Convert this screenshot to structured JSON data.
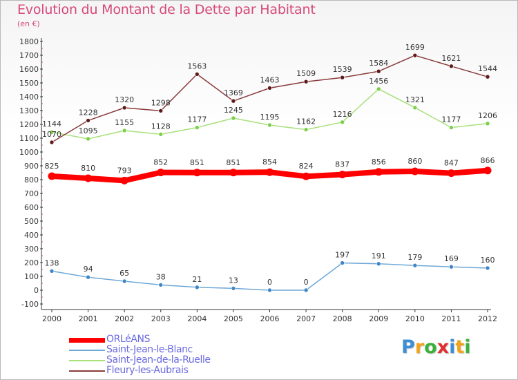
{
  "title": "Evolution du Montant de la Dette par Habitant",
  "subtitle": "(en €)",
  "logo": {
    "letters": [
      "P",
      "r",
      "o",
      "x",
      "i",
      "t",
      "i"
    ],
    "colors": [
      "#3d8ed6",
      "#f2a21b",
      "#3bb13b",
      "#e03030",
      "#3d8ed6",
      "#f2a21b",
      "#3bb13b"
    ]
  },
  "chart_data": {
    "type": "line",
    "x": [
      "2000",
      "2001",
      "2002",
      "2003",
      "2004",
      "2005",
      "2006",
      "2007",
      "2008",
      "2009",
      "2010",
      "2011",
      "2012"
    ],
    "ylim": [
      -100,
      1800
    ],
    "yticks": [
      -100,
      0,
      100,
      200,
      300,
      400,
      500,
      600,
      700,
      800,
      900,
      1000,
      1100,
      1200,
      1300,
      1400,
      1500,
      1600,
      1700,
      1800
    ],
    "grid": false,
    "legend_position": "bottom-left",
    "series": [
      {
        "name": "ORLéANS",
        "color": "#ff0000",
        "marker": "#ff0000",
        "values": [
          825,
          810,
          793,
          852,
          851,
          851,
          854,
          824,
          837,
          856,
          860,
          847,
          866
        ]
      },
      {
        "name": "Saint-Jean-le-Blanc",
        "color": "#6fa8d6",
        "marker": "#3f86c6",
        "values": [
          138,
          94,
          65,
          38,
          21,
          13,
          0,
          0,
          197,
          191,
          179,
          169,
          160
        ]
      },
      {
        "name": "Saint-Jean-de-la-Ruelle",
        "color": "#a8e07a",
        "marker": "#7bcf4a",
        "values": [
          1144,
          1095,
          1155,
          1128,
          1177,
          1245,
          1195,
          1162,
          1216,
          1456,
          1321,
          1177,
          1206
        ]
      },
      {
        "name": "Fleury-les-Aubrais",
        "color": "#8a3a3a",
        "marker": "#5e1a1a",
        "values": [
          1070,
          1228,
          1320,
          1298,
          1563,
          1369,
          1463,
          1509,
          1539,
          1584,
          1699,
          1621,
          1544
        ]
      }
    ]
  }
}
